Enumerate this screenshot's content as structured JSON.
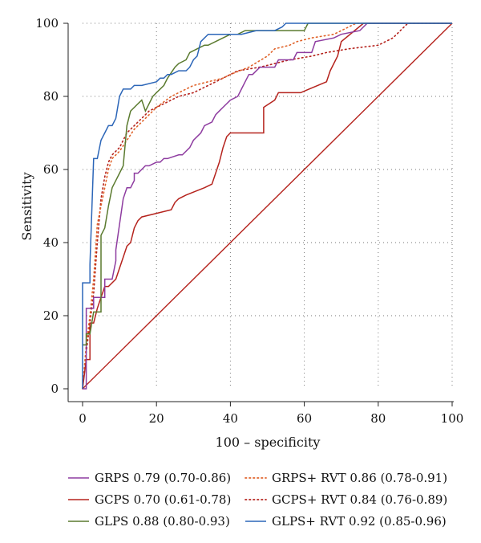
{
  "chart_data": {
    "type": "line",
    "title": "",
    "xlabel": "100 – specificity",
    "ylabel": "Sensitivity",
    "xlim": [
      0,
      100
    ],
    "ylim": [
      0,
      100
    ],
    "xticks": [
      0,
      20,
      40,
      60,
      80,
      100
    ],
    "yticks": [
      0,
      20,
      40,
      60,
      80,
      100
    ],
    "grid": "dotted",
    "legend_position": "bottom",
    "reference_line": {
      "name": "reference",
      "color": "#b5231d",
      "x": [
        0,
        100
      ],
      "y": [
        0,
        100
      ]
    },
    "series": [
      {
        "name": "GRPS",
        "label": "GRPS 0.79 (0.70-0.86)",
        "color": "#8e3ca0",
        "dash": "solid",
        "x": [
          0,
          1,
          1,
          3,
          3,
          6,
          6,
          8,
          9,
          9,
          10,
          11,
          12,
          13,
          14,
          14,
          15,
          17,
          18,
          20,
          21,
          22,
          23,
          26,
          27,
          29,
          30,
          32,
          33,
          35,
          36,
          37,
          38,
          39,
          40,
          42,
          43,
          44,
          45,
          46,
          48,
          52,
          53,
          57,
          58,
          62,
          63,
          68,
          70,
          75,
          77,
          100
        ],
        "y": [
          0,
          0,
          22,
          22,
          25,
          25,
          30,
          30,
          35,
          38,
          45,
          52,
          55,
          55,
          57,
          59,
          59,
          61,
          61,
          62,
          62,
          63,
          63,
          64,
          64,
          66,
          68,
          70,
          72,
          73,
          75,
          76,
          77,
          78,
          79,
          80,
          82,
          84,
          86,
          86,
          88,
          88,
          90,
          90,
          92,
          92,
          95,
          96,
          97,
          98,
          100,
          100
        ]
      },
      {
        "name": "GCPS",
        "label": "GCPS 0.70 (0.61-0.78)",
        "color": "#b5231d",
        "dash": "solid",
        "x": [
          0,
          1,
          2,
          2,
          3,
          4,
          5,
          6,
          7,
          9,
          10,
          11,
          12,
          13,
          14,
          15,
          16,
          20,
          24,
          25,
          26,
          28,
          33,
          35,
          37,
          38,
          39,
          40,
          49,
          49,
          52,
          53,
          59,
          66,
          67,
          69,
          70,
          76,
          100
        ],
        "y": [
          0,
          8,
          8,
          18,
          18,
          22,
          25,
          28,
          28,
          30,
          33,
          36,
          39,
          40,
          44,
          46,
          47,
          48,
          49,
          51,
          52,
          53,
          55,
          56,
          62,
          66,
          69,
          70,
          70,
          77,
          79,
          81,
          81,
          84,
          87,
          91,
          95,
          100,
          100
        ]
      },
      {
        "name": "GLPS",
        "label": "GLPS 0.88 (0.80-0.93)",
        "color": "#5a7a2e",
        "dash": "solid",
        "x": [
          0,
          1,
          1,
          2,
          3,
          5,
          5,
          6,
          7,
          8,
          9,
          10,
          11,
          12,
          13,
          15,
          16,
          17,
          19,
          20,
          22,
          23,
          25,
          26,
          28,
          29,
          31,
          33,
          34,
          38,
          40,
          42,
          44,
          45,
          48,
          60,
          61,
          100
        ],
        "y": [
          12,
          12,
          15,
          15,
          21,
          21,
          42,
          44,
          50,
          55,
          57,
          59,
          61,
          72,
          76,
          78,
          79,
          76,
          80,
          81,
          83,
          85,
          88,
          89,
          90,
          92,
          93,
          94,
          94,
          96,
          97,
          97,
          98,
          98,
          98,
          98,
          100,
          100
        ]
      },
      {
        "name": "GRPS+ RVT",
        "label": "GRPS+ RVT 0.86 (0.78-0.91)",
        "color": "#e0632a",
        "dash": "dotted",
        "x": [
          0,
          1,
          2,
          3,
          4,
          5,
          6,
          7,
          8,
          10,
          12,
          14,
          16,
          18,
          20,
          24,
          28,
          30,
          34,
          38,
          40,
          45,
          50,
          52,
          56,
          58,
          62,
          68,
          74,
          100
        ],
        "y": [
          0,
          12,
          20,
          30,
          45,
          50,
          55,
          60,
          63,
          65,
          68,
          71,
          73,
          75,
          77,
          80,
          82,
          83,
          84,
          85,
          86,
          88,
          91,
          93,
          94,
          95,
          96,
          97,
          100,
          100
        ]
      },
      {
        "name": "GCPS+ RVT",
        "label": "GCPS+ RVT 0.84 (0.76-0.89)",
        "color": "#b5231d",
        "dash": "dotted",
        "x": [
          0,
          1,
          2,
          3,
          4,
          5,
          6,
          7,
          8,
          10,
          12,
          14,
          16,
          18,
          22,
          26,
          30,
          34,
          38,
          42,
          48,
          52,
          56,
          62,
          66,
          72,
          80,
          84,
          88,
          100
        ],
        "y": [
          0,
          10,
          18,
          26,
          40,
          52,
          58,
          62,
          64,
          66,
          70,
          72,
          74,
          76,
          78,
          80,
          81,
          83,
          85,
          87,
          88,
          89,
          90,
          91,
          92,
          93,
          94,
          96,
          100,
          100
        ]
      },
      {
        "name": "GLPS+ RVT",
        "label": "GLPS+ RVT 0.92 (0.85-0.96)",
        "color": "#2c66b8",
        "dash": "solid",
        "x": [
          0,
          0,
          2,
          2,
          3,
          4,
          5,
          6,
          7,
          8,
          9,
          10,
          11,
          12,
          13,
          14,
          16,
          20,
          21,
          22,
          23,
          24,
          26,
          28,
          29,
          30,
          31,
          32,
          34,
          38,
          39,
          43,
          47,
          52,
          54,
          55,
          60,
          73,
          100
        ],
        "y": [
          0,
          29,
          29,
          34,
          63,
          63,
          68,
          70,
          72,
          72,
          74,
          80,
          82,
          82,
          82,
          83,
          83,
          84,
          85,
          85,
          86,
          86,
          87,
          87,
          88,
          90,
          91,
          95,
          97,
          97,
          97,
          97,
          98,
          98,
          99,
          100,
          100,
          100,
          100
        ]
      }
    ]
  }
}
